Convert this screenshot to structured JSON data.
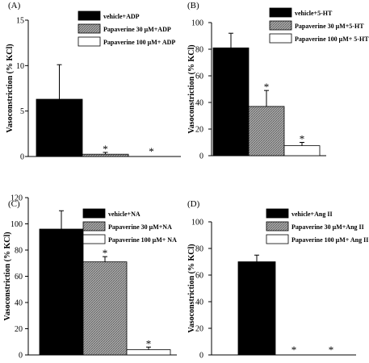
{
  "chart_data": [
    {
      "type": "bar",
      "panel_label": "(A)",
      "ylabel": "Vasoconstriction (% KCl)",
      "ylim": [
        0,
        15
      ],
      "yticks": [
        "0",
        "5",
        "10",
        "15"
      ],
      "series": [
        {
          "name": "vehicle+ADP",
          "value": 6.3,
          "error": 3.8,
          "fill": "black",
          "star": false
        },
        {
          "name": "Papaverine 30 μM+ADP",
          "value": 0.25,
          "error": 0.2,
          "fill": "hatch",
          "star": true
        },
        {
          "name": "Papaverine 100 μM+ ADP",
          "value": 0,
          "error": 0,
          "fill": "white",
          "star": true
        }
      ]
    },
    {
      "type": "bar",
      "panel_label": "(B)",
      "ylabel": "Vasoconstriction (% KCl)",
      "ylim": [
        0,
        100
      ],
      "yticks": [
        "0",
        "20",
        "40",
        "60",
        "80",
        "100"
      ],
      "series": [
        {
          "name": "vehicle+5-HT",
          "value": 81,
          "error": 11,
          "fill": "black",
          "star": false
        },
        {
          "name": "Papaverine 30 μM+5-HT",
          "value": 37,
          "error": 12,
          "fill": "hatch",
          "star": true
        },
        {
          "name": "Papaverine 100 μM+ 5-HT",
          "value": 7.5,
          "error": 2.5,
          "fill": "white",
          "star": true
        }
      ]
    },
    {
      "type": "bar",
      "panel_label": "(C)",
      "ylabel": "Vasoconstriction (% KCl)",
      "ylim": [
        0,
        120
      ],
      "yticks": [
        "0",
        "20",
        "40",
        "60",
        "80",
        "100",
        "120"
      ],
      "series": [
        {
          "name": "vehicle+NA",
          "value": 96,
          "error": 14,
          "fill": "black",
          "star": false
        },
        {
          "name": "Papaverine 30 μM+NA",
          "value": 71,
          "error": 4,
          "fill": "hatch",
          "star": true
        },
        {
          "name": "Papaverine 100 μM+ NA",
          "value": 4,
          "error": 2,
          "fill": "white",
          "star": true
        }
      ]
    },
    {
      "type": "bar",
      "panel_label": "(D)",
      "ylabel": "Vasoconstriction (% KCl)",
      "ylim": [
        0,
        100
      ],
      "yticks": [
        "0",
        "20",
        "40",
        "60",
        "80",
        "100"
      ],
      "series": [
        {
          "name": "vehicle+Ang II",
          "value": 70,
          "error": 5,
          "fill": "black",
          "star": false
        },
        {
          "name": "Papaverine 30 μM+Ang II",
          "value": 0,
          "error": 0,
          "fill": "hatch",
          "star": true
        },
        {
          "name": "Papaverine 100 μM+ Ang II",
          "value": 0,
          "error": 0,
          "fill": "white",
          "star": true
        }
      ]
    }
  ],
  "significance_marker": "*"
}
